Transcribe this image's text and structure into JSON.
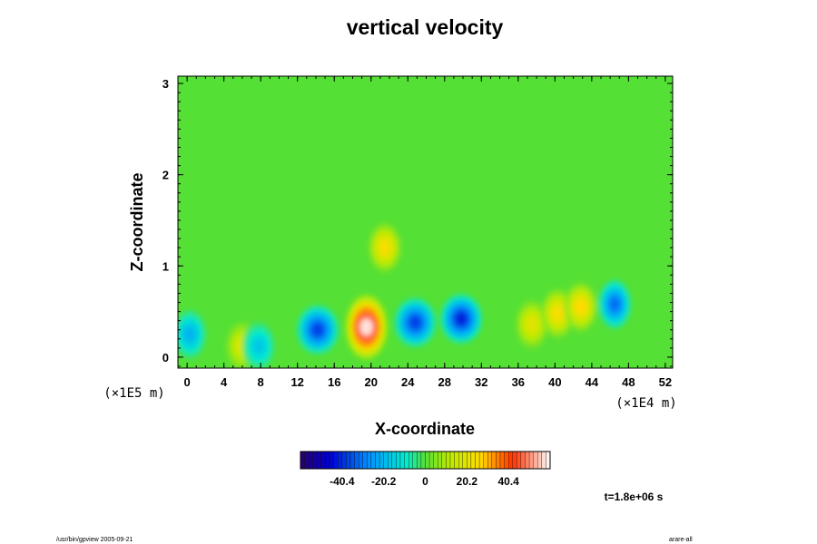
{
  "chart_data": {
    "type": "heatmap",
    "title": "vertical velocity",
    "xlabel": "X-coordinate",
    "ylabel": "Z-coordinate",
    "x_unit_label": "(×1E4 m)",
    "y_unit_label": "(×1E5 m)",
    "x_ticks": [
      "0",
      "4",
      "8",
      "12",
      "16",
      "20",
      "24",
      "28",
      "32",
      "36",
      "40",
      "44",
      "48",
      "52"
    ],
    "y_ticks": [
      "0",
      "1",
      "2",
      "3"
    ],
    "xlim": [
      -1,
      52.8
    ],
    "ylim": [
      -0.12,
      3.08
    ],
    "background_value": 0,
    "features": [
      {
        "x": 19.5,
        "z": 0.33,
        "value": 70
      },
      {
        "x": 21.5,
        "z": 1.2,
        "value": 30
      },
      {
        "x": 14.2,
        "z": 0.3,
        "value": -45
      },
      {
        "x": 24.8,
        "z": 0.38,
        "value": -45
      },
      {
        "x": 29.8,
        "z": 0.42,
        "value": -50
      },
      {
        "x": 46.5,
        "z": 0.58,
        "value": -38
      },
      {
        "x": 37.5,
        "z": 0.36,
        "value": 24
      },
      {
        "x": 40.3,
        "z": 0.48,
        "value": 30
      },
      {
        "x": 42.8,
        "z": 0.55,
        "value": 32
      },
      {
        "x": 6.0,
        "z": 0.12,
        "value": 22
      },
      {
        "x": 0.3,
        "z": 0.25,
        "value": -25
      },
      {
        "x": 7.8,
        "z": 0.12,
        "value": -20
      }
    ],
    "colorbar": {
      "ticks": [
        "-40.4",
        "-20.2",
        "0",
        "20.2",
        "40.4"
      ],
      "range": [
        -60.6,
        60.6
      ]
    },
    "time_label": "t=1.8e+06 s"
  },
  "footer": {
    "left_text": "/usr/bin/gpview 2005-09-21",
    "right_text": "arare-all"
  },
  "colors": {
    "frame": "#000000",
    "background": "#ffffff"
  }
}
